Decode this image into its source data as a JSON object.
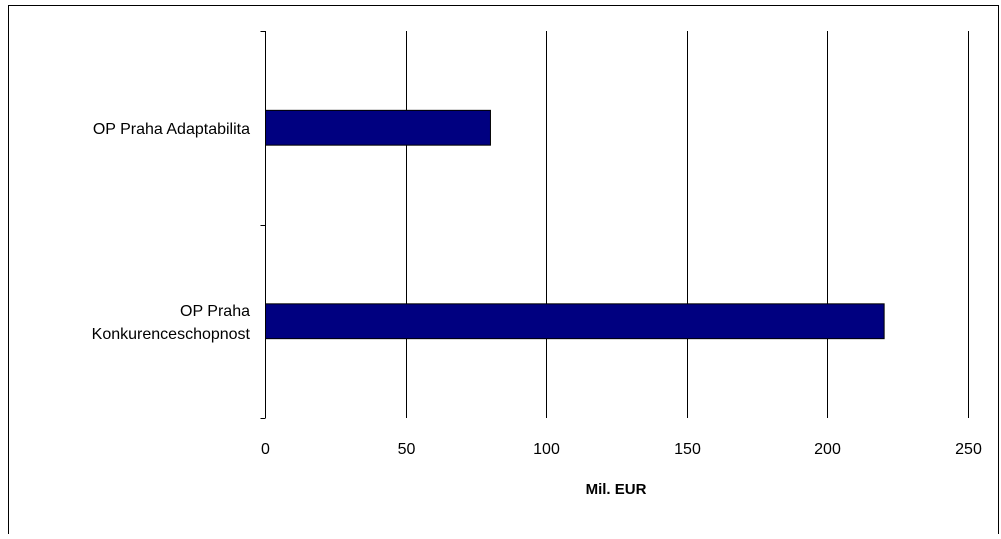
{
  "chart_data": {
    "type": "bar",
    "orientation": "horizontal",
    "categories": [
      "OP Praha Adaptabilita",
      "OP Praha Konkurenceschopnost"
    ],
    "category_lines": [
      [
        "OP Praha Adaptabilita"
      ],
      [
        "OP Praha",
        "Konkurenceschopnost"
      ]
    ],
    "values": [
      80,
      220
    ],
    "title": "",
    "xlabel": "Mil. EUR",
    "ylabel": "",
    "xlim": [
      0,
      250
    ],
    "xticks": [
      0,
      50,
      100,
      150,
      200,
      250
    ],
    "xtick_labels": [
      "0",
      "50",
      "100",
      "150",
      "200",
      "250"
    ],
    "grid": "vertical",
    "legend": "none",
    "colors": {
      "bar_fill": "#000080",
      "bar_stroke": "#000000",
      "grid": "#000000",
      "axis": "#000000",
      "frame": "#000000",
      "background": "#ffffff"
    }
  }
}
